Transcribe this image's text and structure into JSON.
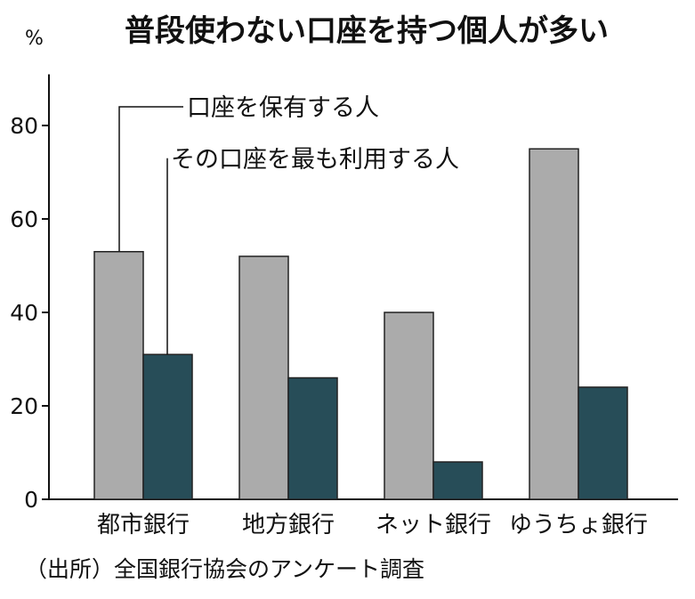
{
  "chart_data": {
    "type": "bar",
    "title": "普段使わない口座を持つ個人が多い",
    "ylabel": "%",
    "xlabel": "",
    "ylim": [
      0,
      90
    ],
    "yticks": [
      0,
      20,
      40,
      60,
      80
    ],
    "categories": [
      "都市銀行",
      "地方銀行",
      "ネット銀行",
      "ゆうちょ銀行"
    ],
    "series": [
      {
        "name": "口座を保有する人",
        "color": "#ababab",
        "values": [
          53,
          52,
          40,
          75
        ]
      },
      {
        "name": "その口座を最も利用する人",
        "color": "#274d58",
        "values": [
          31,
          26,
          8,
          24
        ]
      }
    ],
    "legend_position": "top-left, labels connected to first category bars",
    "source": "（出所）全国銀行協会のアンケート調査"
  }
}
